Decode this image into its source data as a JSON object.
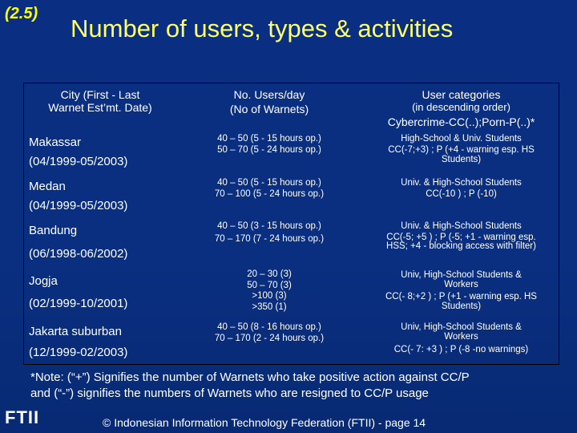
{
  "slide_number": "(2.5)",
  "title": "Number of users, types & activities",
  "table": {
    "headers": {
      "city": [
        "City (First - Last",
        "Warnet Est’mt. Date)"
      ],
      "users": [
        "No. Users/day",
        "(No of Warnets)"
      ],
      "categories": [
        "User categories",
        "(in descending order)",
        "Cybercrime-CC(..);Porn-P(..)*"
      ]
    },
    "rows": [
      {
        "city": [
          "Makassar",
          "(04/1999-05/2003)"
        ],
        "users": [
          "40 – 50 (5 - 15 hours op.)",
          "50 – 70 (5 - 24 hours op.)"
        ],
        "categories": [
          "High-School & Univ. Students",
          "CC(-7;+3) ; P (+4 - warning esp. HS",
          "Students)"
        ]
      },
      {
        "city": [
          "Medan",
          "(04/1999-05/2003)"
        ],
        "users": [
          "40 – 50 (5 - 15 hours op.)",
          "70 – 100 (5 - 24 hours op.)"
        ],
        "categories": [
          "Univ. & High-School Students",
          "CC(-10 ) ; P (-10)"
        ]
      },
      {
        "city": [
          "Bandung",
          "(06/1998-06/2002)"
        ],
        "users": [
          "40 – 50 (3 - 15 hours op.)",
          "70 – 170 (7 - 24 hours op.)"
        ],
        "categories": [
          "Univ. & High-School Students",
          "CC(-5; +5 ) ; P (-5; +1 - warning esp.",
          "HSS; +4 - blocking access with filter)"
        ]
      },
      {
        "city": [
          "Jogja",
          "(02/1999-10/2001)"
        ],
        "users": [
          "20 – 30 (3)",
          "50 – 70 (3)",
          ">100 (3)",
          ">350 (1)"
        ],
        "categories": [
          "Univ, High-School Students &",
          "Workers",
          "CC(- 8;+2 ) ; P (+1 - warning esp. HS",
          "Students)"
        ]
      },
      {
        "city": [
          "Jakarta suburban",
          "(12/1999-02/2003)"
        ],
        "users": [
          "40 – 50 (8 - 16 hours op.)",
          "70 – 170 (2 - 24 hours op.)"
        ],
        "categories": [
          "Univ, High-School Students &",
          "Workers",
          "CC(- 7: +3 ) ; P (-8 -no warnings)"
        ]
      }
    ]
  },
  "note": [
    "*Note: (“+”) Signifies the number of Warnets who take positive action against CC/P",
    "and (“-”) signifies the numbers of Warnets who are resigned to CC/P usage"
  ],
  "logo_text": "FTII",
  "footer": "© Indonesian Information Technology Federation (FTII) - page 14",
  "colors": {
    "background": "#0a2f82",
    "title": "#ffff66",
    "slide_number": "#ffff00",
    "text": "#ffffff"
  }
}
